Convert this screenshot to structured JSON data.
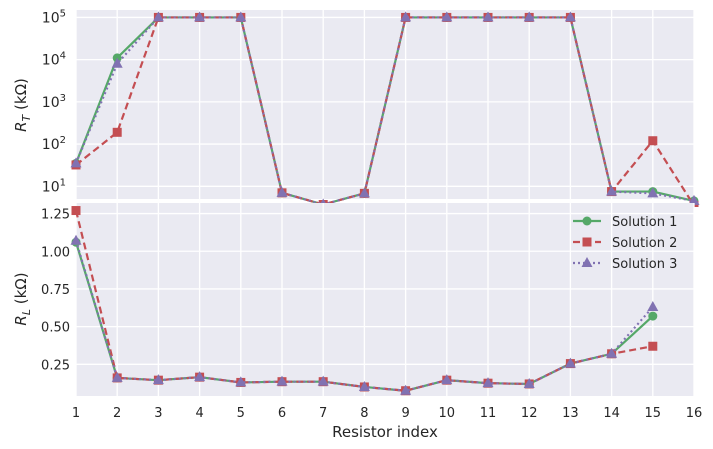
{
  "colors": {
    "background": "#eaeaf2",
    "grid": "#ffffff",
    "solution1": "#55a868",
    "solution2": "#c44e52",
    "solution3": "#8172b2"
  },
  "chart_data": [
    {
      "type": "line",
      "ylabel": "R_T (kΩ)",
      "ylabel_base": "R",
      "ylabel_sub": "T",
      "ylabel_unit": " (kΩ)",
      "yscale": "log",
      "ylim": [
        5,
        150000
      ],
      "yticks": [
        {
          "value": 10,
          "base": "10",
          "exp": "1"
        },
        {
          "value": 100,
          "base": "10",
          "exp": "2"
        },
        {
          "value": 1000,
          "base": "10",
          "exp": "3"
        },
        {
          "value": 10000,
          "base": "10",
          "exp": "4"
        },
        {
          "value": 100000,
          "base": "10",
          "exp": "5"
        }
      ],
      "grid": true,
      "x": [
        1,
        2,
        3,
        4,
        5,
        6,
        7,
        8,
        9,
        10,
        11,
        12,
        13,
        14,
        15,
        16
      ],
      "series": [
        {
          "name": "Solution 1",
          "marker": "circle",
          "linestyle": "solid",
          "values": [
            35,
            11000,
            100000,
            100000,
            100000,
            7,
            3.7,
            6.8,
            100000,
            100000,
            100000,
            100000,
            100000,
            7.5,
            7.5,
            4.5
          ]
        },
        {
          "name": "Solution 2",
          "marker": "square",
          "linestyle": "dashed",
          "values": [
            32,
            190,
            100000,
            100000,
            100000,
            7,
            3.7,
            6.8,
            100000,
            100000,
            100000,
            100000,
            100000,
            7.5,
            120,
            3.5
          ]
        },
        {
          "name": "Solution 3",
          "marker": "triangle",
          "linestyle": "dotted",
          "values": [
            35,
            8000,
            100000,
            100000,
            100000,
            7,
            3.7,
            6.8,
            100000,
            100000,
            100000,
            100000,
            100000,
            7.5,
            6.8,
            4.5
          ]
        }
      ]
    },
    {
      "type": "line",
      "ylabel": "R_L (kΩ)",
      "ylabel_base": "R",
      "ylabel_sub": "L",
      "ylabel_unit": " (kΩ)",
      "ylim": [
        0.04,
        1.32
      ],
      "yticks": [
        {
          "value": 0.25,
          "label": "0.25"
        },
        {
          "value": 0.5,
          "label": "0.50"
        },
        {
          "value": 0.75,
          "label": "0.75"
        },
        {
          "value": 1.0,
          "label": "1.00"
        },
        {
          "value": 1.25,
          "label": "1.25"
        }
      ],
      "xlabel": "Resistor index",
      "xticks": [
        "1",
        "2",
        "3",
        "4",
        "5",
        "6",
        "7",
        "8",
        "9",
        "10",
        "11",
        "12",
        "13",
        "14",
        "15",
        "16"
      ],
      "xlim": [
        1,
        16
      ],
      "grid": true,
      "legend": "center-right",
      "x": [
        1,
        2,
        3,
        4,
        5,
        6,
        7,
        8,
        9,
        10,
        11,
        12,
        13,
        14,
        15
      ],
      "series": [
        {
          "name": "Solution 1",
          "marker": "circle",
          "linestyle": "solid",
          "values": [
            1.06,
            0.16,
            0.145,
            0.165,
            0.13,
            0.135,
            0.135,
            0.1,
            0.075,
            0.145,
            0.125,
            0.12,
            0.255,
            0.32,
            0.57
          ]
        },
        {
          "name": "Solution 2",
          "marker": "square",
          "linestyle": "dashed",
          "values": [
            1.27,
            0.16,
            0.145,
            0.165,
            0.13,
            0.135,
            0.135,
            0.1,
            0.075,
            0.145,
            0.125,
            0.12,
            0.255,
            0.32,
            0.37
          ]
        },
        {
          "name": "Solution 3",
          "marker": "triangle",
          "linestyle": "dotted",
          "values": [
            1.07,
            0.16,
            0.145,
            0.165,
            0.13,
            0.135,
            0.135,
            0.1,
            0.075,
            0.145,
            0.125,
            0.12,
            0.255,
            0.32,
            0.63
          ]
        }
      ]
    }
  ]
}
